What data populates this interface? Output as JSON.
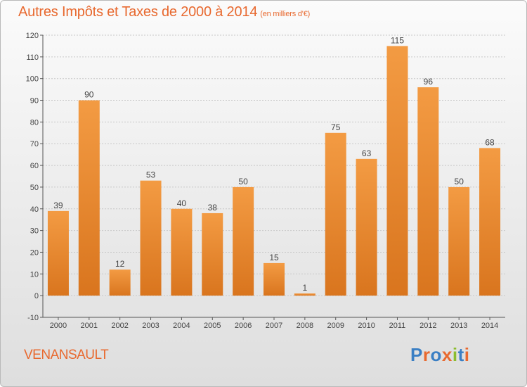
{
  "title": "Autres Impôts et Taxes de 2000 à 2014",
  "title_unit": "(en milliers d'€)",
  "commune": "VENANSAULT",
  "logo": {
    "text": "Proxiti",
    "letter_colors": [
      "#3a7fc4",
      "#e8692f",
      "#3a7fc4",
      "#e8692f",
      "#8cbd2e",
      "#3a7fc4",
      "#e8692f"
    ]
  },
  "colors": {
    "bar": "#f39b43",
    "bar_dark": "#d9751e",
    "title": "#e8692f",
    "grid": "#c8c8c8"
  },
  "chart_data": {
    "type": "bar",
    "categories": [
      "2000",
      "2001",
      "2002",
      "2003",
      "2004",
      "2005",
      "2006",
      "2007",
      "2008",
      "2009",
      "2010",
      "2011",
      "2012",
      "2013",
      "2014"
    ],
    "values": [
      39,
      90,
      12,
      53,
      40,
      38,
      50,
      15,
      1,
      75,
      63,
      115,
      96,
      50,
      68
    ],
    "ylim": [
      -10,
      120
    ],
    "yticks": [
      -10,
      0,
      10,
      20,
      30,
      40,
      50,
      60,
      70,
      80,
      90,
      100,
      110,
      120
    ],
    "grid": true
  }
}
